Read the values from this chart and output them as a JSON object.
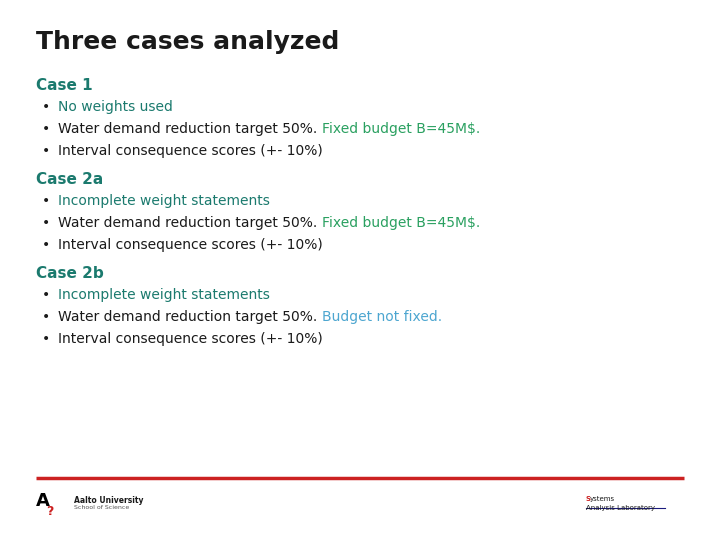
{
  "title": "Three cases analyzed",
  "title_color": "#1a1a1a",
  "title_fontsize": 18,
  "background_color": "#ffffff",
  "case1_header": "Case 1",
  "case2a_header": "Case 2a",
  "case2b_header": "Case 2b",
  "header_color": "#1b7a6e",
  "header_fontsize": 11,
  "bullet_fontsize": 10,
  "bullet_color_black": "#1a1a1a",
  "bullet_color_green": "#2aa060",
  "bullet_color_teal": "#1b7a6e",
  "bullet_color_lightblue": "#4da6d0",
  "separator_color": "#cc2222",
  "case1_bullets": [
    {
      "text": "No weights used",
      "color": "#1b7a6e"
    },
    {
      "text_parts": [
        {
          "text": "Water demand reduction target 50%. ",
          "color": "#1a1a1a"
        },
        {
          "text": "Fixed budget B=45M$.",
          "color": "#2aa060"
        }
      ]
    },
    {
      "text": "Interval consequence scores (+- 10%)",
      "color": "#1a1a1a"
    }
  ],
  "case2a_bullets": [
    {
      "text": "Incomplete weight statements",
      "color": "#1b7a6e"
    },
    {
      "text_parts": [
        {
          "text": "Water demand reduction target 50%. ",
          "color": "#1a1a1a"
        },
        {
          "text": "Fixed budget B=45M$.",
          "color": "#2aa060"
        }
      ]
    },
    {
      "text": "Interval consequence scores (+- 10%)",
      "color": "#1a1a1a"
    }
  ],
  "case2b_bullets": [
    {
      "text": "Incomplete weight statements",
      "color": "#1b7a6e"
    },
    {
      "text_parts": [
        {
          "text": "Water demand reduction target 50%. ",
          "color": "#1a1a1a"
        },
        {
          "text": "Budget not fixed.",
          "color": "#4da6d0"
        }
      ]
    },
    {
      "text": "Interval consequence scores (+- 10%)",
      "color": "#1a1a1a"
    }
  ]
}
